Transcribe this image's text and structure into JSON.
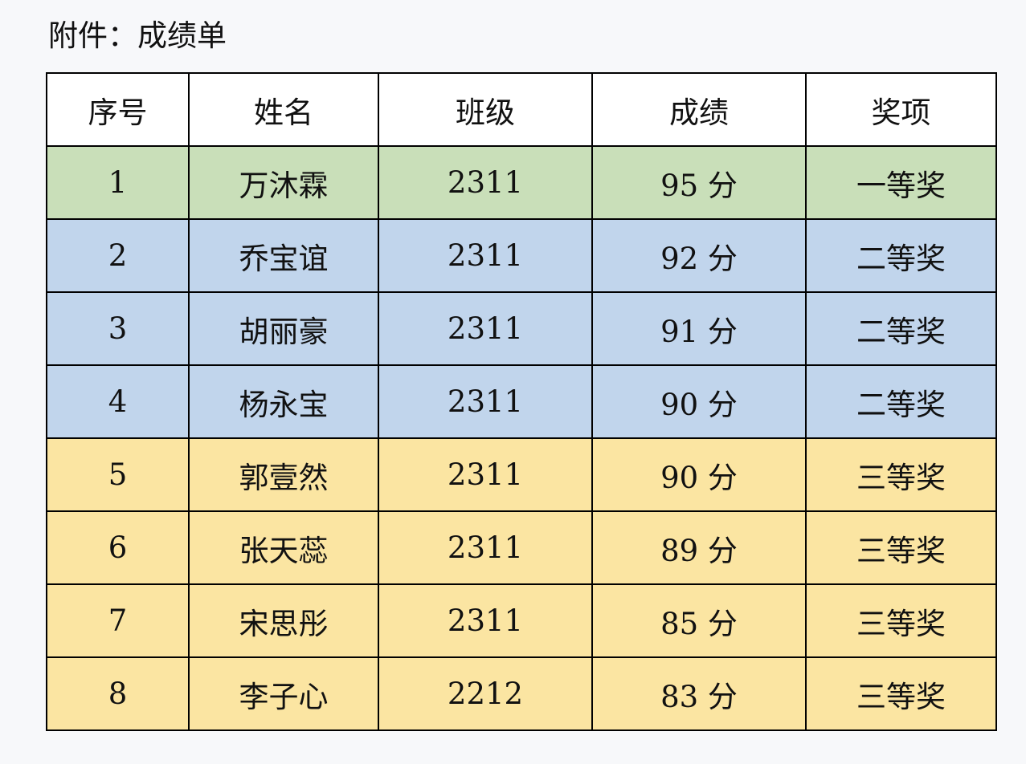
{
  "caption": "附件：成绩单",
  "table": {
    "headers": [
      "序号",
      "姓名",
      "班级",
      "成绩",
      "奖项"
    ],
    "rows": [
      {
        "index": "1",
        "name": "万沐霖",
        "class": "2311",
        "score": "95 分",
        "award": "一等奖",
        "tier": "first"
      },
      {
        "index": "2",
        "name": "乔宝谊",
        "class": "2311",
        "score": "92 分",
        "award": "二等奖",
        "tier": "second"
      },
      {
        "index": "3",
        "name": "胡丽豪",
        "class": "2311",
        "score": "91 分",
        "award": "二等奖",
        "tier": "second"
      },
      {
        "index": "4",
        "name": "杨永宝",
        "class": "2311",
        "score": "90 分",
        "award": "二等奖",
        "tier": "second"
      },
      {
        "index": "5",
        "name": "郭壹然",
        "class": "2311",
        "score": "90 分",
        "award": "三等奖",
        "tier": "third"
      },
      {
        "index": "6",
        "name": "张天蕊",
        "class": "2311",
        "score": "89 分",
        "award": "三等奖",
        "tier": "third"
      },
      {
        "index": "7",
        "name": "宋思彤",
        "class": "2311",
        "score": "85 分",
        "award": "三等奖",
        "tier": "third"
      },
      {
        "index": "8",
        "name": "李子心",
        "class": "2212",
        "score": "83 分",
        "award": "三等奖",
        "tier": "third"
      }
    ]
  },
  "colors": {
    "first_prize_row": "#c9dfb9",
    "second_prize_row": "#c1d5ec",
    "third_prize_row": "#fbe5a2",
    "header_row": "#ffffff",
    "border": "#000000"
  }
}
